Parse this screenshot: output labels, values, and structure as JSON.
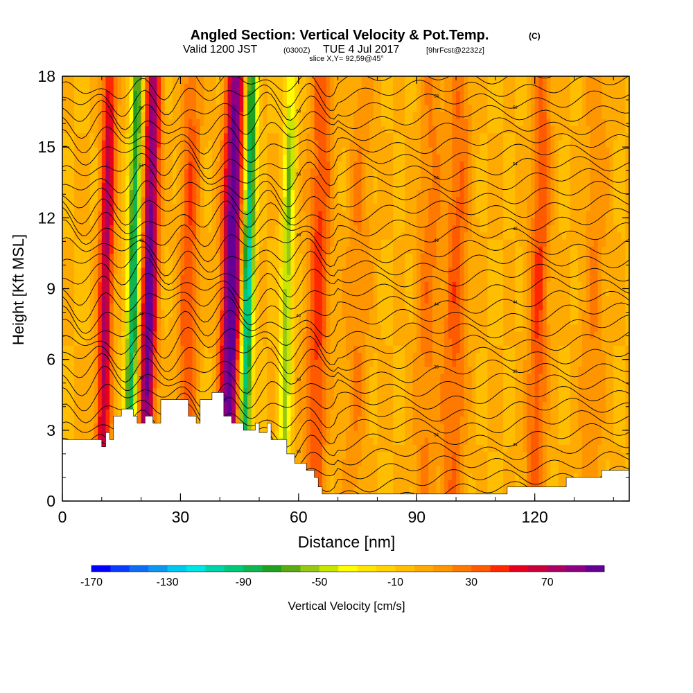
{
  "chart_data": {
    "type": "heatmap",
    "title": "Angled Section: Vertical Velocity & Pot.Temp.",
    "title_unit": "(C)",
    "subtitle": {
      "valid": "Valid 1200 JST",
      "utc": "(0300Z)",
      "date": "TUE 4 Jul 2017",
      "forecast": "[9hrFcst@2232z]"
    },
    "slice_label": "slice X,Y= 92,59@45°",
    "xlabel": "Distance [nm]",
    "ylabel": "Height [Kft MSL]",
    "xlim": [
      0,
      144
    ],
    "ylim": [
      0,
      18
    ],
    "x_ticks": [
      0,
      30,
      60,
      90,
      120
    ],
    "y_ticks": [
      0,
      3,
      6,
      9,
      12,
      15,
      18
    ],
    "colorbar": {
      "label": "Vertical Velocity [cm/s]",
      "tick_labels": [
        "-170",
        "-130",
        "-90",
        "-50",
        "-10",
        "30",
        "70"
      ],
      "range": [
        -170,
        100
      ],
      "step": 10,
      "colors": [
        "#0000ff",
        "#0a3cff",
        "#0f6cf5",
        "#0f96f0",
        "#00c8f0",
        "#00e6e6",
        "#00d2aa",
        "#00c878",
        "#10b450",
        "#20a020",
        "#5aaa14",
        "#96c814",
        "#c8e600",
        "#ffff00",
        "#ffe600",
        "#ffd200",
        "#ffbe00",
        "#ffaa00",
        "#ff9600",
        "#ff7800",
        "#ff5a00",
        "#ff2800",
        "#e6001e",
        "#c8003c",
        "#aa0064",
        "#8c0082",
        "#640096"
      ]
    },
    "background_w": 0,
    "updrafts": [
      {
        "x": 11,
        "amp": 75,
        "width": 1.8
      },
      {
        "x": 18,
        "amp": -95,
        "width": 1.6
      },
      {
        "x": 22,
        "amp": 100,
        "width": 2.0
      },
      {
        "x": 32,
        "amp": 40,
        "width": 2.4
      },
      {
        "x": 43,
        "amp": 110,
        "width": 2.5
      },
      {
        "x": 47,
        "amp": -110,
        "width": 1.6
      },
      {
        "x": 57,
        "amp": -60,
        "width": 1.5
      },
      {
        "x": 65,
        "amp": 45,
        "width": 2.8
      },
      {
        "x": 75,
        "amp": 20,
        "width": 3.0
      },
      {
        "x": 93,
        "amp": 25,
        "width": 3.0
      },
      {
        "x": 100,
        "amp": 35,
        "width": 3.0
      },
      {
        "x": 121,
        "amp": 40,
        "width": 2.5
      },
      {
        "x": 135,
        "amp": 20,
        "width": 3.0
      }
    ],
    "terrain": [
      [
        0,
        2.6
      ],
      [
        10,
        2.6
      ],
      [
        10,
        2.3
      ],
      [
        11,
        2.3
      ],
      [
        11,
        2.9
      ],
      [
        12,
        2.9
      ],
      [
        12,
        2.6
      ],
      [
        13,
        2.6
      ],
      [
        13,
        3.6
      ],
      [
        15,
        3.6
      ],
      [
        15,
        3.9
      ],
      [
        18,
        3.9
      ],
      [
        18,
        3.6
      ],
      [
        19,
        3.6
      ],
      [
        19,
        3.3
      ],
      [
        21,
        3.3
      ],
      [
        21,
        3.6
      ],
      [
        23,
        3.6
      ],
      [
        23,
        3.3
      ],
      [
        25,
        3.3
      ],
      [
        25,
        4.3
      ],
      [
        32,
        4.3
      ],
      [
        32,
        3.6
      ],
      [
        34,
        3.6
      ],
      [
        34,
        3.3
      ],
      [
        35,
        3.3
      ],
      [
        35,
        4.3
      ],
      [
        38,
        4.3
      ],
      [
        38,
        4.6
      ],
      [
        41,
        4.6
      ],
      [
        41,
        3.6
      ],
      [
        43,
        3.6
      ],
      [
        43,
        3.3
      ],
      [
        46,
        3.3
      ],
      [
        46,
        3.0
      ],
      [
        49,
        3.0
      ],
      [
        49,
        3.3
      ],
      [
        50,
        3.3
      ],
      [
        50,
        2.9
      ],
      [
        52,
        2.9
      ],
      [
        52,
        3.3
      ],
      [
        53,
        3.3
      ],
      [
        53,
        2.6
      ],
      [
        57,
        2.6
      ],
      [
        57,
        2.0
      ],
      [
        59,
        2.0
      ],
      [
        59,
        1.6
      ],
      [
        62,
        1.6
      ],
      [
        62,
        1.3
      ],
      [
        64,
        1.3
      ],
      [
        64,
        1.0
      ],
      [
        65,
        1.0
      ],
      [
        65,
        0.6
      ],
      [
        66,
        0.6
      ],
      [
        66,
        0.3
      ],
      [
        113,
        0.3
      ],
      [
        113,
        0.6
      ],
      [
        128,
        0.6
      ],
      [
        128,
        1.0
      ],
      [
        137,
        1.0
      ],
      [
        137,
        1.3
      ],
      [
        144,
        1.3
      ]
    ],
    "theta_levels": [
      30,
      33,
      34,
      35,
      36,
      37,
      38,
      39,
      40,
      41,
      42,
      43,
      44,
      45,
      46,
      47,
      48,
      49,
      50,
      51,
      52,
      53,
      54,
      55,
      56,
      57,
      58,
      59,
      60,
      61,
      62,
      63
    ],
    "theta_labels": [
      "34",
      "39",
      "44",
      "49",
      "54",
      "58"
    ]
  }
}
